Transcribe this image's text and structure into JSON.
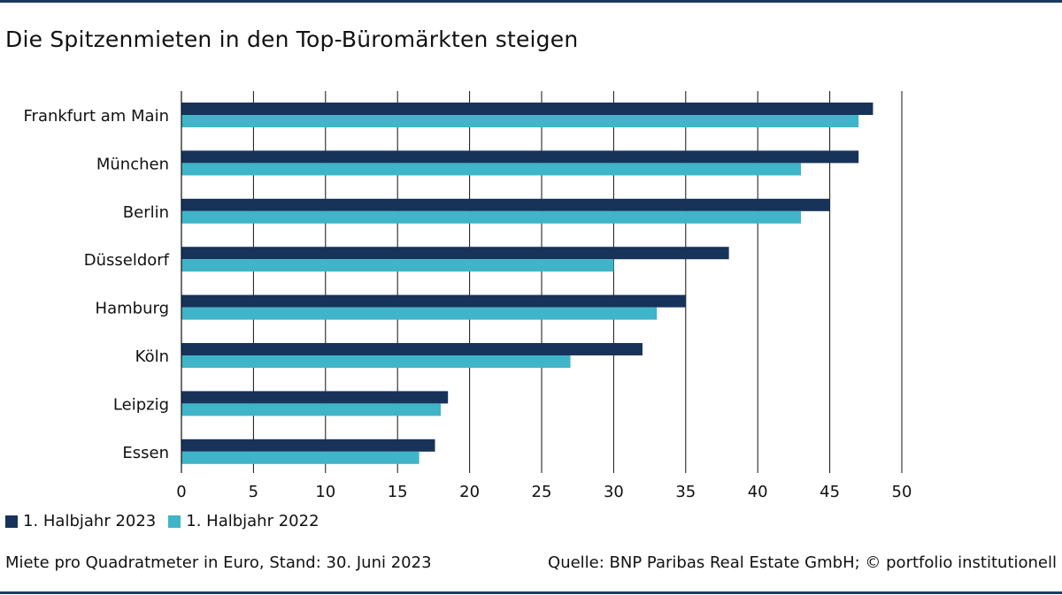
{
  "colors": {
    "rule": "#1c3a5e",
    "series_2023": "#17335a",
    "series_2022": "#40b4c8",
    "grid": "#111111"
  },
  "title": "Die Spitzenmieten in den Top-Büromärkten steigen",
  "footer": {
    "note": "Miete pro Quadratmeter in Euro, Stand: 30. Juni 2023",
    "source": "Quelle: BNP Paribas Real Estate GmbH; © portfolio institutionell"
  },
  "chart_data": {
    "type": "bar",
    "orientation": "horizontal",
    "categories": [
      "Frankfurt am Main",
      "München",
      "Berlin",
      "Düsseldorf",
      "Hamburg",
      "Köln",
      "Leipzig",
      "Essen"
    ],
    "series": [
      {
        "name": "1. Halbjahr 2023",
        "values": [
          48,
          47,
          45,
          38,
          35,
          32,
          18.5,
          17.6
        ]
      },
      {
        "name": "1. Halbjahr 2022",
        "values": [
          47,
          43,
          43,
          30,
          33,
          27,
          18,
          16.5
        ]
      }
    ],
    "xlim": [
      0,
      50
    ],
    "xticks": [
      "0",
      "5",
      "10",
      "15",
      "20",
      "25",
      "30",
      "35",
      "40",
      "45",
      "50"
    ],
    "grid": true,
    "legend_position": "bottom-left"
  }
}
